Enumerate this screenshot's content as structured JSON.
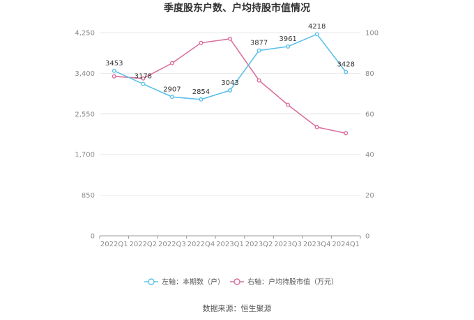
{
  "chart_data": {
    "type": "line",
    "title": "季度股东户数、户均持股市值情况",
    "categories": [
      "2022Q1",
      "2022Q2",
      "2022Q3",
      "2022Q4",
      "2023Q1",
      "2023Q2",
      "2023Q3",
      "2023Q4",
      "2024Q1"
    ],
    "left_axis": {
      "ticks": [
        "0",
        "850",
        "1,700",
        "2,550",
        "3,400",
        "4,250"
      ],
      "ylim": [
        0,
        4250
      ]
    },
    "right_axis": {
      "ticks": [
        "0",
        "20",
        "40",
        "60",
        "80",
        "100"
      ],
      "ylim": [
        0,
        100
      ]
    },
    "series": [
      {
        "name": "左轴：本期数（户）",
        "axis": "left",
        "color": "#5bc0eb",
        "values": [
          3453,
          3178,
          2907,
          2854,
          3043,
          3877,
          3961,
          4218,
          3428
        ],
        "labels": [
          "3453",
          "3178",
          "2907",
          "2854",
          "3043",
          "3877",
          "3961",
          "4218",
          "3428"
        ]
      },
      {
        "name": "右轴：户均持股市值（万元）",
        "axis": "right",
        "color": "#d9709e",
        "values": [
          78.5,
          77.5,
          85.0,
          95.0,
          97.0,
          76.5,
          64.5,
          53.5,
          50.5
        ]
      }
    ],
    "grid": true,
    "legend_position": "bottom"
  },
  "source": "数据来源：恒生聚源"
}
